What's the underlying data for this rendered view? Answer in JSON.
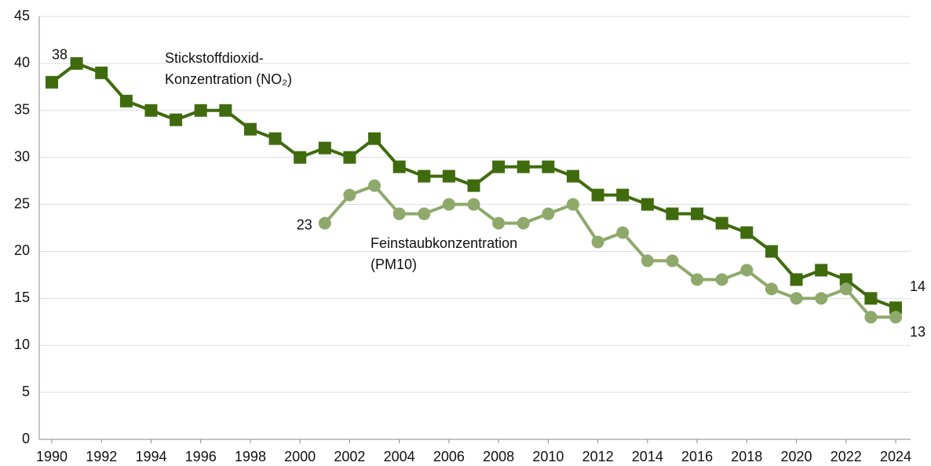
{
  "chart_data": {
    "type": "line",
    "x": [
      1990,
      1991,
      1992,
      1993,
      1994,
      1995,
      1996,
      1997,
      1998,
      1999,
      2000,
      2001,
      2002,
      2003,
      2004,
      2005,
      2006,
      2007,
      2008,
      2009,
      2010,
      2011,
      2012,
      2013,
      2014,
      2015,
      2016,
      2017,
      2018,
      2019,
      2020,
      2021,
      2022,
      2023,
      2024
    ],
    "series": [
      {
        "label": [
          "Stickstoffdioxid-",
          "Konzentration (NO₂)"
        ],
        "color": "#3f6b0e",
        "marker": "square",
        "values": [
          38,
          40,
          39,
          36,
          35,
          34,
          35,
          35,
          33,
          32,
          30,
          31,
          30,
          32,
          29,
          28,
          28,
          27,
          29,
          29,
          29,
          28,
          26,
          26,
          25,
          24,
          24,
          23,
          22,
          20,
          17,
          18,
          17,
          15,
          14
        ],
        "value_labels": [
          "38",
          null,
          null,
          null,
          null,
          null,
          null,
          null,
          null,
          null,
          null,
          null,
          null,
          null,
          null,
          null,
          null,
          null,
          null,
          null,
          null,
          null,
          null,
          null,
          null,
          null,
          null,
          null,
          null,
          null,
          null,
          null,
          null,
          null,
          "14"
        ]
      },
      {
        "label": [
          "Feinstaubkonzentration",
          "(PM10)"
        ],
        "color": "#8ea96b",
        "marker": "circle",
        "values": [
          null,
          null,
          null,
          null,
          null,
          null,
          null,
          null,
          null,
          null,
          null,
          23,
          26,
          27,
          24,
          24,
          25,
          25,
          23,
          23,
          24,
          25,
          21,
          22,
          19,
          19,
          17,
          17,
          18,
          16,
          15,
          15,
          16,
          13,
          13
        ],
        "value_labels": [
          null,
          null,
          null,
          null,
          null,
          null,
          null,
          null,
          null,
          null,
          null,
          "23",
          null,
          null,
          null,
          null,
          null,
          null,
          null,
          null,
          null,
          null,
          null,
          null,
          null,
          null,
          null,
          null,
          null,
          null,
          null,
          null,
          null,
          null,
          "13"
        ]
      }
    ],
    "xlim": [
      1990,
      2024
    ],
    "xticks": [
      1990,
      1992,
      1994,
      1996,
      1998,
      2000,
      2002,
      2004,
      2006,
      2008,
      2010,
      2012,
      2014,
      2016,
      2018,
      2020,
      2022,
      2024
    ],
    "ylim": [
      0,
      45
    ],
    "yticks": [
      0,
      5,
      10,
      15,
      20,
      25,
      30,
      35,
      40,
      45
    ],
    "grid": true
  }
}
